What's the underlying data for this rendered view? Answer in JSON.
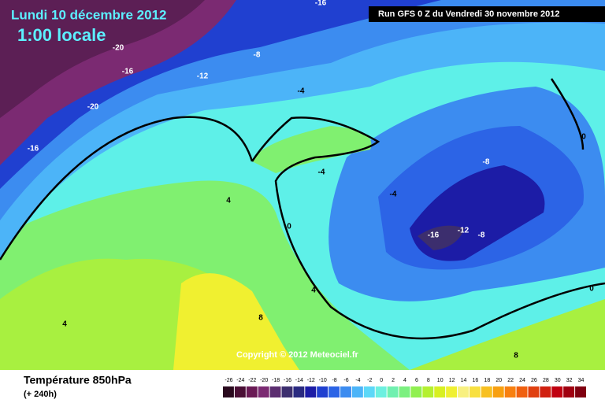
{
  "header": {
    "title": "Lundi 10 décembre 2012",
    "time": "1:00 locale",
    "run": "Run GFS 0 Z du Vendredi 30 novembre 2012"
  },
  "footer": {
    "parameter": "Température 850hPa",
    "lead": "(+ 240h)",
    "copyright": "Copyright © 2012 Meteociel.fr"
  },
  "contour_labels": [
    -16,
    -20,
    -16,
    -8,
    -12,
    -4,
    -20,
    -16,
    4,
    0,
    -4,
    -4,
    -8,
    -16,
    -12,
    -8,
    0,
    0,
    4,
    8,
    4,
    8
  ],
  "colorbar": {
    "values": [
      -26,
      -24,
      -22,
      -20,
      -18,
      -16,
      -14,
      -12,
      -10,
      -8,
      -6,
      -4,
      -2,
      0,
      2,
      4,
      6,
      8,
      10,
      12,
      14,
      16,
      18,
      20,
      22,
      24,
      26,
      28,
      30,
      32,
      34
    ],
    "colors": [
      "#2a0a1e",
      "#4a0f35",
      "#6a1a55",
      "#7b2a72",
      "#5c2e70",
      "#3c2e6e",
      "#2a2a80",
      "#1c1ca6",
      "#2040d0",
      "#2c64e6",
      "#3c8cf0",
      "#4cb4f8",
      "#5cd8f8",
      "#6cf0e0",
      "#70f0b0",
      "#7cf080",
      "#90f050",
      "#b4f030",
      "#d8f020",
      "#f0f030",
      "#f8f080",
      "#f8e040",
      "#f8c020",
      "#f8a010",
      "#f88010",
      "#f06010",
      "#e04010",
      "#d02010",
      "#c00010",
      "#a00010",
      "#800010"
    ]
  }
}
